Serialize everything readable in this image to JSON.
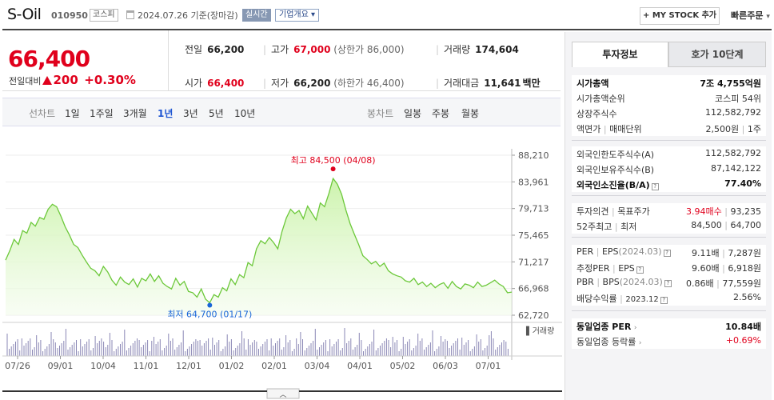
{
  "header": {
    "company": "S-Oil",
    "code": "010950",
    "market": "코스피",
    "date": "2024.07.26 기준(장마감)",
    "realtime": "실시간",
    "overview": "기업개요",
    "my_stock": "+ MY STOCK 추가",
    "quick_order": "빠른주문"
  },
  "price": {
    "current": "66,400",
    "change_label": "전일대비",
    "change": "200",
    "change_pct": "+0.30%",
    "prev_label": "전일",
    "prev": "66,200",
    "high_label": "고가",
    "high": "67,000",
    "upper_limit": "(상한가 86,000)",
    "volume_label": "거래량",
    "volume": "174,604",
    "open_label": "시가",
    "open": "66,400",
    "low_label": "저가",
    "low": "66,200",
    "lower_limit": "(하한가 46,400)",
    "amount_label": "거래대금",
    "amount": "11,641",
    "amount_unit": "백만"
  },
  "tabs": {
    "line_title": "선차트",
    "line": [
      "1일",
      "1주일",
      "3개월",
      "1년",
      "3년",
      "5년",
      "10년"
    ],
    "active": "1년",
    "candle_title": "봉차트",
    "candle": [
      "일봉",
      "주봉",
      "월봉"
    ]
  },
  "chart_data": {
    "type": "area",
    "x_ticks": [
      "07/26",
      "09/01",
      "10/04",
      "11/01",
      "12/01",
      "01/02",
      "02/01",
      "03/04",
      "04/01",
      "05/02",
      "06/03",
      "07/01"
    ],
    "y_ticks": [
      "88,210",
      "83,961",
      "79,713",
      "75,465",
      "71,217",
      "66,968",
      "62,720"
    ],
    "ylim": [
      62720,
      88210
    ],
    "high_label": "최고 84,500 (04/08)",
    "low_label": "최저 64,700 (01/17)",
    "volume_label": "거래량",
    "values": [
      71500,
      73000,
      74800,
      74000,
      76200,
      75800,
      77500,
      76900,
      78300,
      78000,
      79600,
      80400,
      80000,
      78500,
      76800,
      75500,
      74000,
      73500,
      72300,
      71200,
      70200,
      69800,
      69000,
      70500,
      69600,
      68300,
      67500,
      68800,
      68000,
      67600,
      68500,
      67200,
      68600,
      68200,
      69300,
      68100,
      69000,
      67800,
      67300,
      66900,
      68600,
      67500,
      68100,
      66500,
      66300,
      65600,
      66900,
      65300,
      64700,
      66000,
      65600,
      67100,
      66600,
      68500,
      67600,
      69200,
      68700,
      71100,
      70600,
      73300,
      74600,
      74100,
      75100,
      74300,
      73300,
      76100,
      78200,
      79600,
      78900,
      79400,
      78100,
      80100,
      79000,
      77900,
      80600,
      80000,
      82100,
      84500,
      83600,
      82000,
      79500,
      77300,
      75600,
      74000,
      72200,
      71600,
      70900,
      71300,
      70500,
      71000,
      69800,
      69300,
      69000,
      68800,
      68200,
      68000,
      68600,
      67600,
      68000,
      67300,
      67800,
      67100,
      67600,
      67900,
      67000,
      68100,
      67300,
      66900,
      67700,
      67500,
      67100,
      68000,
      67300,
      67500,
      67900,
      68300,
      67700,
      67300,
      66300,
      66400
    ]
  },
  "panel": {
    "tab_active": "투자정보",
    "tab_other": "호가 10단계",
    "market_cap_label": "시가총액",
    "market_cap": "7조 4,755억원",
    "rank_label": "시가총액순위",
    "rank": "코스피 54위",
    "shares_label": "상장주식수",
    "shares": "112,582,792",
    "par_label": "액면가",
    "unit_label": "매매단위",
    "par": "2,500원",
    "unit": "1주",
    "foreign_limit_label": "외국인한도주식수(A)",
    "foreign_limit": "112,582,792",
    "foreign_hold_label": "외국인보유주식수(B)",
    "foreign_hold": "87,142,122",
    "foreign_ratio_label": "외국인소진율(B/A)",
    "foreign_ratio": "77.40%",
    "opinion_label": "투자의견",
    "target_label": "목표주가",
    "opinion": "3.94매수",
    "target": "93,235",
    "w52_label": "52주최고",
    "w52_low_label": "최저",
    "w52_high": "84,500",
    "w52_low": "64,700",
    "per_label": "PER",
    "eps_label": "EPS",
    "eps_period": "(2024.03)",
    "per": "9.11배",
    "eps": "7,287원",
    "est_per_label": "추정PER",
    "est_eps_label": "EPS",
    "est_per": "9.60배",
    "est_eps": "6,918원",
    "pbr_label": "PBR",
    "bps_label": "BPS",
    "bps_period": "(2024.03)",
    "pbr": "0.86배",
    "bps": "77,559원",
    "div_label": "배당수익률",
    "div_period": "2023.12",
    "div": "2.56%",
    "ind_per_label": "동일업종 PER",
    "ind_per": "10.84배",
    "ind_chg_label": "동일업종 등락률",
    "ind_chg": "+0.69%"
  }
}
